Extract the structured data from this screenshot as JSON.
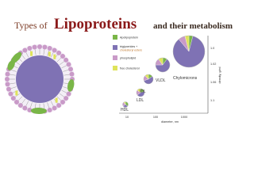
{
  "header": {
    "title_prefix": "Types of",
    "title_main": "Lipoproteins",
    "title_suffix": "and their metabolism"
  },
  "legend": {
    "items": [
      {
        "label": "Apolipoprotein"
      },
      {
        "label": "triglycerides +",
        "sublabel": "cholesteryl esters"
      },
      {
        "label": "phospholipid"
      },
      {
        "label": "free cholesterol"
      }
    ]
  },
  "plot": {
    "particles": [
      {
        "label": "HDL"
      },
      {
        "label": "LDL"
      },
      {
        "label": "IDL"
      },
      {
        "label": "VLDL"
      },
      {
        "label": "Chylomicrons"
      }
    ],
    "x_axis": {
      "title": "diameter, nm",
      "ticks": [
        "10",
        "100",
        "1000"
      ]
    },
    "y_axis": {
      "title": "density, g/ml",
      "ticks": [
        "1.1",
        "1.06",
        "1.02",
        "1.0"
      ]
    }
  }
}
